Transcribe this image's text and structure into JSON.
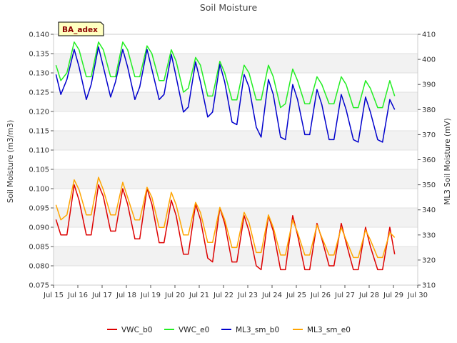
{
  "chart_data": {
    "type": "line",
    "title": "Soil Moisture",
    "annotation": "BA_adex",
    "xlabel": "",
    "ylabel": "Soil Moisture (m3/m3)",
    "y2label": "ML3 Soil Moisture (mV)",
    "xlim": [
      15,
      30
    ],
    "ylim": [
      0.075,
      0.14
    ],
    "y2lim": [
      310,
      410
    ],
    "x_ticks": [
      15,
      16,
      17,
      18,
      19,
      20,
      21,
      22,
      23,
      24,
      25,
      26,
      27,
      28,
      29,
      30
    ],
    "x_tick_labels": [
      "Jul 15",
      "Jul 16",
      "Jul 17",
      "Jul 18",
      "Jul 19",
      "Jul 20",
      "Jul 21",
      "Jul 22",
      "Jul 23",
      "Jul 24",
      "Jul 25",
      "Jul 26",
      "Jul 27",
      "Jul 28",
      "Jul 29",
      "Jul 30"
    ],
    "y_ticks": [
      0.075,
      0.08,
      0.085,
      0.09,
      0.095,
      0.1,
      0.105,
      0.11,
      0.115,
      0.12,
      0.125,
      0.13,
      0.135,
      0.14
    ],
    "y_tick_labels": [
      "0.075",
      "0.080",
      "0.085",
      "0.090",
      "0.095",
      "0.100",
      "0.105",
      "0.110",
      "0.115",
      "0.120",
      "0.125",
      "0.130",
      "0.135",
      "0.140"
    ],
    "y2_ticks": [
      310,
      320,
      330,
      340,
      350,
      360,
      370,
      380,
      390,
      400,
      410
    ],
    "y2_tick_labels": [
      "310",
      "320",
      "330",
      "340",
      "350",
      "360",
      "370",
      "380",
      "390",
      "400",
      "410"
    ],
    "grid": "horizontal bands",
    "legend_position": "bottom",
    "series": [
      {
        "name": "VWC_b0",
        "color": "#dd0000",
        "axis": "left",
        "x": [
          15.1,
          15.3,
          15.55,
          15.85,
          16.05,
          16.35,
          16.55,
          16.85,
          17.05,
          17.35,
          17.55,
          17.85,
          18.05,
          18.35,
          18.55,
          18.85,
          19.05,
          19.35,
          19.55,
          19.85,
          20.05,
          20.35,
          20.55,
          20.85,
          21.05,
          21.35,
          21.55,
          21.85,
          22.05,
          22.35,
          22.55,
          22.85,
          23.05,
          23.35,
          23.55,
          23.85,
          24.05,
          24.35,
          24.55,
          24.85,
          25.05,
          25.35,
          25.55,
          25.85,
          26.05,
          26.35,
          26.55,
          26.85,
          27.05,
          27.35,
          27.55,
          27.85,
          28.05,
          28.35,
          28.55,
          28.85,
          29.05
        ],
        "y": [
          0.092,
          0.088,
          0.088,
          0.101,
          0.097,
          0.088,
          0.088,
          0.101,
          0.098,
          0.089,
          0.089,
          0.1,
          0.096,
          0.087,
          0.087,
          0.1,
          0.096,
          0.086,
          0.086,
          0.097,
          0.093,
          0.083,
          0.083,
          0.096,
          0.092,
          0.082,
          0.081,
          0.095,
          0.091,
          0.081,
          0.081,
          0.093,
          0.089,
          0.08,
          0.079,
          0.093,
          0.089,
          0.079,
          0.079,
          0.093,
          0.088,
          0.079,
          0.079,
          0.091,
          0.087,
          0.08,
          0.08,
          0.091,
          0.086,
          0.079,
          0.079,
          0.09,
          0.085,
          0.079,
          0.079,
          0.09,
          0.083
        ]
      },
      {
        "name": "VWC_e0",
        "color": "#22ee22",
        "axis": "left",
        "x": [
          15.1,
          15.3,
          15.55,
          15.85,
          16.05,
          16.35,
          16.55,
          16.85,
          17.05,
          17.35,
          17.55,
          17.85,
          18.05,
          18.35,
          18.55,
          18.85,
          19.05,
          19.35,
          19.55,
          19.85,
          20.05,
          20.35,
          20.55,
          20.85,
          21.05,
          21.35,
          21.55,
          21.85,
          22.05,
          22.35,
          22.55,
          22.85,
          23.05,
          23.35,
          23.55,
          23.85,
          24.05,
          24.35,
          24.55,
          24.85,
          25.05,
          25.35,
          25.55,
          25.85,
          26.05,
          26.35,
          26.55,
          26.85,
          27.05,
          27.35,
          27.55,
          27.85,
          28.05,
          28.35,
          28.55,
          28.85,
          29.05
        ],
        "y": [
          0.132,
          0.128,
          0.13,
          0.138,
          0.136,
          0.129,
          0.129,
          0.138,
          0.136,
          0.129,
          0.129,
          0.138,
          0.136,
          0.129,
          0.129,
          0.137,
          0.135,
          0.128,
          0.128,
          0.136,
          0.133,
          0.125,
          0.126,
          0.134,
          0.132,
          0.124,
          0.124,
          0.133,
          0.13,
          0.123,
          0.123,
          0.132,
          0.13,
          0.123,
          0.123,
          0.132,
          0.129,
          0.121,
          0.122,
          0.131,
          0.128,
          0.122,
          0.122,
          0.129,
          0.127,
          0.122,
          0.122,
          0.129,
          0.127,
          0.121,
          0.121,
          0.128,
          0.126,
          0.121,
          0.121,
          0.128,
          0.124
        ]
      },
      {
        "name": "ML3_sm_b0",
        "color": "#0000cc",
        "axis": "right",
        "x": [
          15.1,
          15.3,
          15.55,
          15.85,
          16.05,
          16.35,
          16.55,
          16.85,
          17.05,
          17.35,
          17.55,
          17.85,
          18.05,
          18.35,
          18.55,
          18.85,
          19.05,
          19.35,
          19.55,
          19.85,
          20.05,
          20.35,
          20.55,
          20.85,
          21.05,
          21.35,
          21.55,
          21.85,
          22.05,
          22.35,
          22.55,
          22.85,
          23.05,
          23.35,
          23.55,
          23.85,
          24.05,
          24.35,
          24.55,
          24.85,
          25.05,
          25.35,
          25.55,
          25.85,
          26.05,
          26.35,
          26.55,
          26.85,
          27.05,
          27.35,
          27.55,
          27.85,
          28.05,
          28.35,
          28.55,
          28.85,
          29.05
        ],
        "y": [
          394,
          386,
          392,
          404,
          397,
          384,
          390,
          405,
          397,
          385,
          391,
          404,
          397,
          384,
          389,
          404,
          396,
          384,
          386,
          402,
          393,
          379,
          381,
          399,
          391,
          377,
          379,
          398,
          391,
          375,
          374,
          394,
          389,
          373,
          369,
          392,
          386,
          369,
          368,
          390,
          384,
          370,
          370,
          388,
          382,
          368,
          368,
          386,
          380,
          368,
          367,
          385,
          379,
          368,
          367,
          384,
          380
        ]
      },
      {
        "name": "ML3_sm_e0",
        "color": "#ffa500",
        "axis": "right",
        "x": [
          15.1,
          15.3,
          15.55,
          15.85,
          16.05,
          16.35,
          16.55,
          16.85,
          17.05,
          17.35,
          17.55,
          17.85,
          18.05,
          18.35,
          18.55,
          18.85,
          19.05,
          19.35,
          19.55,
          19.85,
          20.05,
          20.35,
          20.55,
          20.85,
          21.05,
          21.35,
          21.55,
          21.85,
          22.05,
          22.35,
          22.55,
          22.85,
          23.05,
          23.35,
          23.55,
          23.85,
          24.05,
          24.35,
          24.55,
          24.85,
          25.05,
          25.35,
          25.55,
          25.85,
          26.05,
          26.35,
          26.55,
          26.85,
          27.05,
          27.35,
          27.55,
          27.85,
          28.05,
          28.35,
          28.55,
          28.85,
          29.05
        ],
        "y": [
          342,
          336,
          338,
          352,
          348,
          338,
          338,
          353,
          348,
          338,
          338,
          351,
          345,
          336,
          336,
          349,
          345,
          333,
          333,
          347,
          342,
          330,
          330,
          343,
          339,
          327,
          327,
          341,
          336,
          325,
          325,
          339,
          335,
          323,
          323,
          338,
          333,
          322,
          322,
          336,
          331,
          322,
          322,
          334,
          329,
          322,
          322,
          333,
          328,
          321,
          321,
          332,
          328,
          321,
          321,
          331,
          329
        ]
      }
    ]
  }
}
